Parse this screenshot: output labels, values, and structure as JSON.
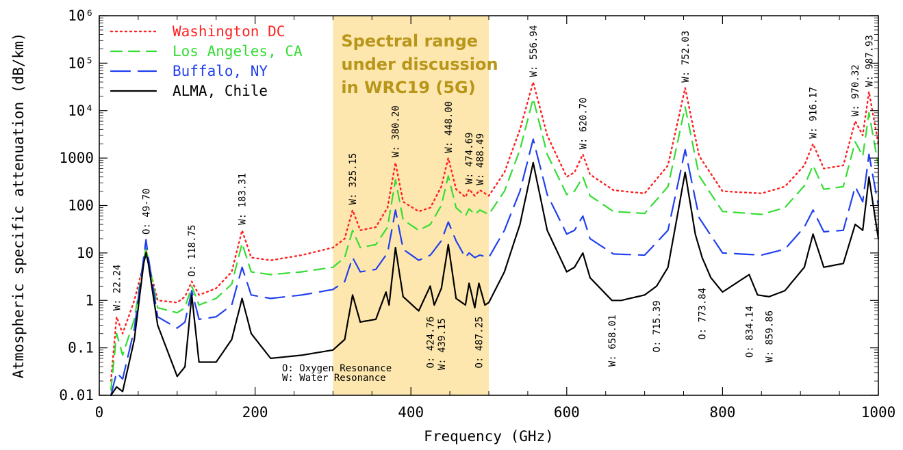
{
  "chart_data": {
    "type": "line",
    "title": "",
    "xlabel": "Frequency (GHz)",
    "ylabel": "Atmospheric specific attenuation (dB/km)",
    "xlim": [
      0,
      1000
    ],
    "ylim": [
      0.01,
      1000000
    ],
    "yscale": "log",
    "grid": false,
    "legend_position": "top-left",
    "x_ticks": [
      {
        "value": 0,
        "label": "0"
      },
      {
        "value": 200,
        "label": "200"
      },
      {
        "value": 400,
        "label": "400"
      },
      {
        "value": 600,
        "label": "600"
      },
      {
        "value": 800,
        "label": "800"
      },
      {
        "value": 1000,
        "label": "1000"
      }
    ],
    "y_ticks": [
      {
        "value": 1000000,
        "label": "10⁶"
      },
      {
        "value": 100000,
        "label": "10⁵"
      },
      {
        "value": 10000,
        "label": "10⁴"
      },
      {
        "value": 1000,
        "label": "1000"
      },
      {
        "value": 100,
        "label": "100"
      },
      {
        "value": 10,
        "label": "10"
      },
      {
        "value": 1,
        "label": "1"
      },
      {
        "value": 0.1,
        "label": "0.1"
      },
      {
        "value": 0.01,
        "label": "0.01"
      }
    ],
    "highlight_band": {
      "range": [
        300,
        500
      ],
      "color": "#fde3a0",
      "label_lines": [
        "Spectral range",
        "under discussion",
        "in WRC19 (5G)"
      ]
    },
    "series": [
      {
        "name": "Washington DC",
        "color": "#ff2020",
        "dash": "dot",
        "points": [
          [
            15,
            0.02
          ],
          [
            22.24,
            0.45
          ],
          [
            30,
            0.2
          ],
          [
            45,
            1
          ],
          [
            57,
            6
          ],
          [
            60,
            12
          ],
          [
            63,
            6
          ],
          [
            75,
            1
          ],
          [
            100,
            0.9
          ],
          [
            110,
            1.2
          ],
          [
            118.75,
            2.5
          ],
          [
            128,
            1.3
          ],
          [
            150,
            1.8
          ],
          [
            170,
            4
          ],
          [
            183.31,
            30
          ],
          [
            195,
            8
          ],
          [
            220,
            7
          ],
          [
            260,
            9
          ],
          [
            300,
            13
          ],
          [
            315,
            20
          ],
          [
            325.15,
            80
          ],
          [
            335,
            30
          ],
          [
            355,
            35
          ],
          [
            370,
            90
          ],
          [
            380.2,
            800
          ],
          [
            390,
            120
          ],
          [
            410,
            75
          ],
          [
            425,
            90
          ],
          [
            439,
            250
          ],
          [
            448,
            1000
          ],
          [
            458,
            220
          ],
          [
            470,
            150
          ],
          [
            474.69,
            220
          ],
          [
            482,
            160
          ],
          [
            488.49,
            210
          ],
          [
            500,
            160
          ],
          [
            520,
            500
          ],
          [
            540,
            4000
          ],
          [
            556.94,
            40000
          ],
          [
            575,
            3000
          ],
          [
            600,
            400
          ],
          [
            610,
            500
          ],
          [
            620.7,
            1200
          ],
          [
            630,
            450
          ],
          [
            660,
            210
          ],
          [
            700,
            180
          ],
          [
            730,
            700
          ],
          [
            752.03,
            30000
          ],
          [
            770,
            1100
          ],
          [
            800,
            200
          ],
          [
            850,
            180
          ],
          [
            880,
            250
          ],
          [
            905,
            700
          ],
          [
            916.17,
            2000
          ],
          [
            930,
            600
          ],
          [
            955,
            700
          ],
          [
            970.32,
            6000
          ],
          [
            980,
            3000
          ],
          [
            987.93,
            25000
          ],
          [
            1000,
            2000
          ]
        ]
      },
      {
        "name": "Los Angeles, CA",
        "color": "#33dd33",
        "dash": "dash",
        "points": [
          [
            15,
            0.013
          ],
          [
            22.24,
            0.2
          ],
          [
            30,
            0.07
          ],
          [
            45,
            0.4
          ],
          [
            57,
            7
          ],
          [
            60,
            13
          ],
          [
            63,
            7
          ],
          [
            75,
            0.7
          ],
          [
            100,
            0.55
          ],
          [
            110,
            0.7
          ],
          [
            118.75,
            2
          ],
          [
            128,
            0.8
          ],
          [
            150,
            1.1
          ],
          [
            170,
            2.2
          ],
          [
            183.31,
            16
          ],
          [
            195,
            4
          ],
          [
            220,
            3.5
          ],
          [
            260,
            4
          ],
          [
            300,
            5
          ],
          [
            315,
            8
          ],
          [
            325.15,
            30
          ],
          [
            335,
            13
          ],
          [
            355,
            15
          ],
          [
            370,
            35
          ],
          [
            380.2,
            350
          ],
          [
            390,
            50
          ],
          [
            410,
            30
          ],
          [
            425,
            40
          ],
          [
            439,
            100
          ],
          [
            448,
            420
          ],
          [
            458,
            90
          ],
          [
            470,
            60
          ],
          [
            474.69,
            85
          ],
          [
            482,
            65
          ],
          [
            488.49,
            80
          ],
          [
            500,
            65
          ],
          [
            520,
            200
          ],
          [
            540,
            1500
          ],
          [
            556.94,
            18000
          ],
          [
            575,
            1200
          ],
          [
            600,
            170
          ],
          [
            610,
            200
          ],
          [
            620.7,
            400
          ],
          [
            630,
            160
          ],
          [
            660,
            75
          ],
          [
            700,
            68
          ],
          [
            730,
            250
          ],
          [
            752.03,
            12000
          ],
          [
            770,
            420
          ],
          [
            800,
            75
          ],
          [
            850,
            65
          ],
          [
            880,
            90
          ],
          [
            905,
            260
          ],
          [
            916.17,
            700
          ],
          [
            930,
            220
          ],
          [
            955,
            250
          ],
          [
            970.32,
            2200
          ],
          [
            980,
            1100
          ],
          [
            987.93,
            9000
          ],
          [
            1000,
            700
          ]
        ]
      },
      {
        "name": "Buffalo, NY",
        "color": "#2040ee",
        "dash": "longdash",
        "points": [
          [
            15,
            0.01
          ],
          [
            22.24,
            0.03
          ],
          [
            30,
            0.022
          ],
          [
            45,
            0.25
          ],
          [
            57,
            8
          ],
          [
            60,
            19
          ],
          [
            63,
            8
          ],
          [
            75,
            0.45
          ],
          [
            100,
            0.26
          ],
          [
            110,
            0.35
          ],
          [
            118.75,
            1.6
          ],
          [
            128,
            0.4
          ],
          [
            150,
            0.45
          ],
          [
            170,
            0.8
          ],
          [
            183.31,
            5
          ],
          [
            195,
            1.3
          ],
          [
            220,
            1.1
          ],
          [
            260,
            1.3
          ],
          [
            300,
            1.7
          ],
          [
            315,
            2.5
          ],
          [
            325.15,
            8
          ],
          [
            335,
            4
          ],
          [
            355,
            4.5
          ],
          [
            370,
            10
          ],
          [
            380.2,
            80
          ],
          [
            390,
            12
          ],
          [
            410,
            7
          ],
          [
            425,
            9
          ],
          [
            439,
            18
          ],
          [
            448,
            45
          ],
          [
            458,
            18
          ],
          [
            470,
            8
          ],
          [
            474.69,
            10
          ],
          [
            482,
            8
          ],
          [
            488.49,
            9
          ],
          [
            500,
            8
          ],
          [
            520,
            30
          ],
          [
            540,
            200
          ],
          [
            556.94,
            2500
          ],
          [
            575,
            170
          ],
          [
            600,
            25
          ],
          [
            610,
            30
          ],
          [
            620.7,
            60
          ],
          [
            630,
            20
          ],
          [
            660,
            9.5
          ],
          [
            700,
            9
          ],
          [
            730,
            30
          ],
          [
            752.03,
            1500
          ],
          [
            770,
            55
          ],
          [
            800,
            10
          ],
          [
            850,
            9
          ],
          [
            880,
            12
          ],
          [
            905,
            35
          ],
          [
            916.17,
            80
          ],
          [
            930,
            28
          ],
          [
            955,
            30
          ],
          [
            970.32,
            250
          ],
          [
            980,
            120
          ],
          [
            987.93,
            1200
          ],
          [
            1000,
            100
          ]
        ]
      },
      {
        "name": "ALMA, Chile",
        "color": "#000000",
        "dash": "solid",
        "points": [
          [
            15,
            0.01
          ],
          [
            22.24,
            0.015
          ],
          [
            30,
            0.012
          ],
          [
            45,
            0.15
          ],
          [
            57,
            6
          ],
          [
            60,
            10
          ],
          [
            63,
            6
          ],
          [
            75,
            0.3
          ],
          [
            100,
            0.025
          ],
          [
            110,
            0.04
          ],
          [
            118.75,
            1.3
          ],
          [
            128,
            0.05
          ],
          [
            150,
            0.05
          ],
          [
            170,
            0.15
          ],
          [
            183.31,
            1.1
          ],
          [
            195,
            0.2
          ],
          [
            220,
            0.06
          ],
          [
            260,
            0.07
          ],
          [
            300,
            0.09
          ],
          [
            315,
            0.15
          ],
          [
            325.15,
            1.3
          ],
          [
            335,
            0.35
          ],
          [
            355,
            0.4
          ],
          [
            368,
            1.5
          ],
          [
            372,
            0.8
          ],
          [
            380.2,
            13
          ],
          [
            390,
            1.2
          ],
          [
            410,
            0.6
          ],
          [
            424.76,
            2
          ],
          [
            430,
            0.8
          ],
          [
            439.15,
            1.8
          ],
          [
            448,
            15
          ],
          [
            458,
            1.1
          ],
          [
            470,
            0.8
          ],
          [
            474.69,
            2.3
          ],
          [
            482,
            0.7
          ],
          [
            487.25,
            2.3
          ],
          [
            495,
            0.8
          ],
          [
            500,
            0.9
          ],
          [
            520,
            4
          ],
          [
            540,
            40
          ],
          [
            556.94,
            800
          ],
          [
            575,
            30
          ],
          [
            600,
            4
          ],
          [
            610,
            5
          ],
          [
            620.7,
            10
          ],
          [
            630,
            3
          ],
          [
            658.01,
            1
          ],
          [
            670,
            1
          ],
          [
            700,
            1.3
          ],
          [
            715.39,
            2
          ],
          [
            730,
            5
          ],
          [
            752.03,
            500
          ],
          [
            765,
            25
          ],
          [
            773.84,
            8
          ],
          [
            785,
            3
          ],
          [
            800,
            1.5
          ],
          [
            834.14,
            3.5
          ],
          [
            845,
            1.3
          ],
          [
            859.86,
            1.2
          ],
          [
            880,
            1.6
          ],
          [
            905,
            5
          ],
          [
            916.17,
            25
          ],
          [
            930,
            5
          ],
          [
            955,
            6
          ],
          [
            970.32,
            40
          ],
          [
            980,
            30
          ],
          [
            987.93,
            400
          ],
          [
            1000,
            20
          ]
        ]
      }
    ],
    "peak_annotations": [
      {
        "x": 22.24,
        "y": 0.5,
        "text": "W: 22.24",
        "side": "above"
      },
      {
        "x": 60,
        "y": 20,
        "text": "O: 49-70",
        "side": "above"
      },
      {
        "x": 118.75,
        "y": 2.6,
        "text": "O: 118.75",
        "side": "above"
      },
      {
        "x": 183.31,
        "y": 32,
        "text": "W: 183.31",
        "side": "above"
      },
      {
        "x": 325.15,
        "y": 85,
        "text": "W: 325.15",
        "side": "above"
      },
      {
        "x": 380.2,
        "y": 850,
        "text": "W: 380.20",
        "side": "above"
      },
      {
        "x": 448,
        "y": 1050,
        "text": "W: 448.00",
        "side": "above"
      },
      {
        "x": 474.69,
        "y": 230,
        "text": "W: 474.69",
        "side": "above"
      },
      {
        "x": 488.49,
        "y": 220,
        "text": "W: 488.49",
        "side": "above"
      },
      {
        "x": 556.94,
        "y": 42000,
        "text": "W: 556.94",
        "side": "above"
      },
      {
        "x": 620.7,
        "y": 1250,
        "text": "W: 620.70",
        "side": "above"
      },
      {
        "x": 752.03,
        "y": 32000,
        "text": "W: 752.03",
        "side": "above"
      },
      {
        "x": 916.17,
        "y": 2100,
        "text": "W: 916.17",
        "side": "above"
      },
      {
        "x": 970.32,
        "y": 6200,
        "text": "W: 970.32",
        "side": "above"
      },
      {
        "x": 987.93,
        "y": 26000,
        "text": "W: 987.93",
        "side": "above"
      },
      {
        "x": 424.76,
        "y": 0.6,
        "text": "O: 424.76",
        "side": "below"
      },
      {
        "x": 439.15,
        "y": 0.55,
        "text": "W: 439.15",
        "side": "below"
      },
      {
        "x": 487.25,
        "y": 0.6,
        "text": "O: 487.25",
        "side": "below"
      },
      {
        "x": 658.01,
        "y": 0.65,
        "text": "W: 658.01",
        "side": "below"
      },
      {
        "x": 715.39,
        "y": 1.3,
        "text": "O: 715.39",
        "side": "below"
      },
      {
        "x": 773.84,
        "y": 2.4,
        "text": "O: 773.84",
        "side": "below"
      },
      {
        "x": 834.14,
        "y": 1.0,
        "text": "O: 834.14",
        "side": "below"
      },
      {
        "x": 859.86,
        "y": 0.8,
        "text": "W: 859.86",
        "side": "below"
      }
    ],
    "notes": [
      "O: Oxygen Resonance",
      "W: Water Resonance"
    ]
  }
}
